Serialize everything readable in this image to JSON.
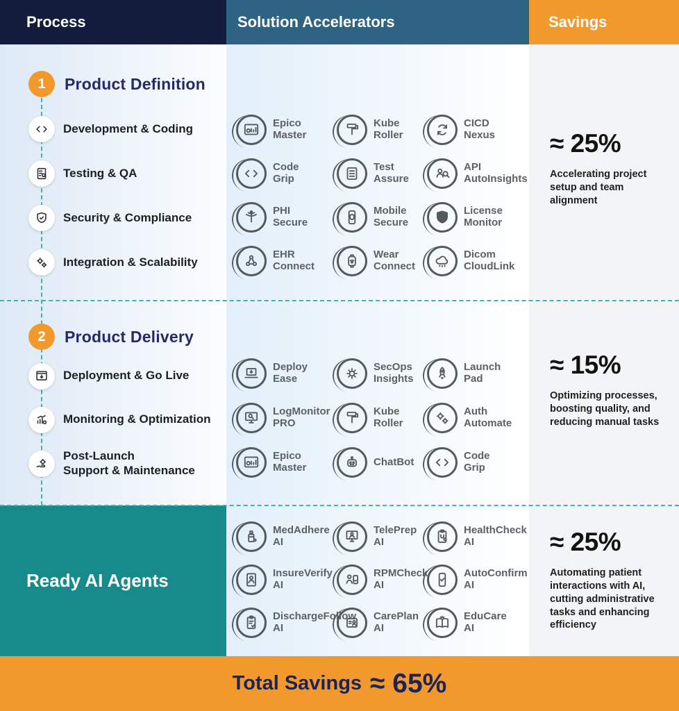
{
  "header": {
    "process": "Process",
    "accelerators": "Solution Accelerators",
    "savings": "Savings"
  },
  "colors": {
    "header_navy": "#141c3e",
    "header_steel_blue": "#2f6383",
    "accent_orange": "#f2992e",
    "teal_block": "#178a8c",
    "dashed_guide": "#45b1ab",
    "section_title_navy": "#232a64",
    "process_bg": "#dde9f6",
    "accelerator_bg": "#e2effa",
    "savings_bg": "#f3f4f6",
    "badge_gray": "#54595e",
    "footer_text_navy": "#1b2454"
  },
  "sections": [
    {
      "number": "1",
      "title": "Product Definition",
      "steps": [
        {
          "label": "Development & Coding",
          "icon": "code-icon"
        },
        {
          "label": "Testing & QA",
          "icon": "checklist-icon"
        },
        {
          "label": "Security & Compliance",
          "icon": "shield-check-icon"
        },
        {
          "label": "Integration & Scalability",
          "icon": "gears-icon"
        }
      ],
      "accelerators": [
        {
          "name": "Epico\nMaster",
          "icon": "dashboard-icon"
        },
        {
          "name": "Kube\nRoller",
          "icon": "roller-icon"
        },
        {
          "name": "CICD\nNexus",
          "icon": "cycle-icon"
        },
        {
          "name": "Code\nGrip",
          "icon": "code-icon"
        },
        {
          "name": "Test\nAssure",
          "icon": "list-icon"
        },
        {
          "name": "API\nAutoInsights",
          "icon": "people-search-icon"
        },
        {
          "name": "PHI\nSecure",
          "icon": "caduceus-icon"
        },
        {
          "name": "Mobile\nSecure",
          "icon": "phone-shield-icon"
        },
        {
          "name": "License\nMonitor",
          "icon": "shield-fill-icon"
        },
        {
          "name": "EHR\nConnect",
          "icon": "network-icon"
        },
        {
          "name": "Wear\nConnect",
          "icon": "watch-wifi-icon"
        },
        {
          "name": "Dicom\nCloudLink",
          "icon": "cloud-icon"
        }
      ],
      "savings": {
        "value": "≈ 25%",
        "description": "Accelerating project setup and team alignment"
      }
    },
    {
      "number": "2",
      "title": "Product Delivery",
      "steps": [
        {
          "label": "Deployment & Go Live",
          "icon": "browser-cloud-icon"
        },
        {
          "label": "Monitoring & Optimization",
          "icon": "chart-gear-icon"
        },
        {
          "label": "Post-Launch\nSupport & Maintenance",
          "icon": "hand-gear-icon"
        }
      ],
      "accelerators": [
        {
          "name": "Deploy\nEase",
          "icon": "laptop-icon"
        },
        {
          "name": "SecOps\nInsights",
          "icon": "gear-bug-icon"
        },
        {
          "name": "Launch\nPad",
          "icon": "rocket-icon"
        },
        {
          "name": "LogMonitor\nPRO",
          "icon": "monitor-search-icon"
        },
        {
          "name": "Kube\nRoller",
          "icon": "roller-icon"
        },
        {
          "name": "Auth\nAutomate",
          "icon": "gears-icon"
        },
        {
          "name": "Epico\nMaster",
          "icon": "dashboard-icon"
        },
        {
          "name": "ChatBot",
          "icon": "robot-icon"
        },
        {
          "name": "Code\nGrip",
          "icon": "code-icon"
        }
      ],
      "savings": {
        "value": "≈ 15%",
        "description": "Optimizing processes, boosting quality, and reducing manual tasks"
      }
    },
    {
      "title": "Ready AI Agents",
      "accelerators": [
        {
          "name": "MedAdhere\nAI",
          "icon": "bottle-icon"
        },
        {
          "name": "TelePrep\nAI",
          "icon": "tele-icon"
        },
        {
          "name": "HealthCheck\nAI",
          "icon": "clipboard-stetho-icon"
        },
        {
          "name": "InsureVerify\nAI",
          "icon": "doc-person-icon"
        },
        {
          "name": "RPMCheck\nAI",
          "icon": "person-phone-icon"
        },
        {
          "name": "AutoConfirm\nAI",
          "icon": "phone-check-icon"
        },
        {
          "name": "DischargeFollow\nAI",
          "icon": "clipboard-check-icon"
        },
        {
          "name": "CarePlan\nAI",
          "icon": "card-person-icon"
        },
        {
          "name": "EduCare\nAI",
          "icon": "book-icon"
        }
      ],
      "savings": {
        "value": "≈ 25%",
        "description": "Automating patient interactions with AI, cutting administrative tasks and enhancing efficiency"
      }
    }
  ],
  "footer": {
    "label": "Total Savings",
    "value": "≈ 65%"
  }
}
